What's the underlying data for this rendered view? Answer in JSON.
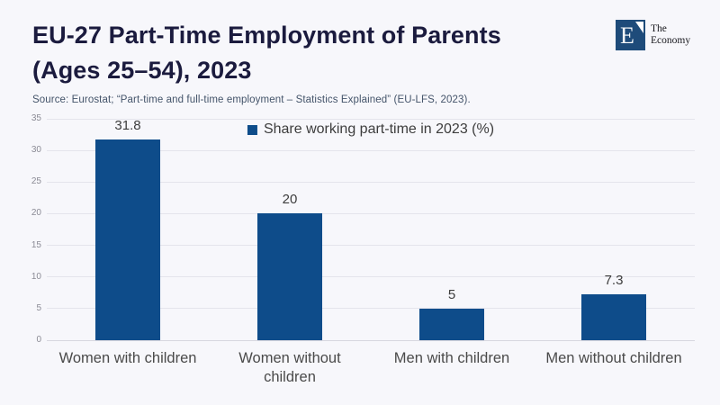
{
  "header": {
    "title_line1": "EU-27 Part-Time Employment of Parents",
    "title_line2": "(Ages 25–54), 2023",
    "logo": {
      "monogram": "E",
      "name_line1": "The",
      "name_line2": "Economy"
    }
  },
  "source": "Source: Eurostat; “Part-time and full-time employment – Statistics Explained” (EU-LFS, 2023).",
  "chart_data": {
    "type": "bar",
    "title": "EU-27 Part-Time Employment of Parents (Ages 25–54), 2023",
    "categories": [
      "Women with children",
      "Women without children",
      "Men with children",
      "Men without children"
    ],
    "values": [
      31.8,
      20,
      5,
      7.3
    ],
    "value_labels": [
      "31.8",
      "20",
      "5",
      "7.3"
    ],
    "legend": "Share working part-time in 2023 (%)",
    "legend_position": "top-center",
    "xlabel": "",
    "ylabel": "",
    "ylim": [
      0,
      35
    ],
    "yticks": [
      0,
      5,
      10,
      15,
      20,
      25,
      30,
      35
    ],
    "grid": true,
    "bar_color": "#0e4c8a",
    "background_color": "#f7f7fb"
  }
}
